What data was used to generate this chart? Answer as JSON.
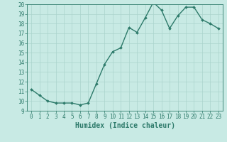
{
  "x": [
    0,
    1,
    2,
    3,
    4,
    5,
    6,
    7,
    8,
    9,
    10,
    11,
    12,
    13,
    14,
    15,
    16,
    17,
    18,
    19,
    20,
    21,
    22,
    23
  ],
  "y": [
    11.2,
    10.6,
    10.0,
    9.8,
    9.8,
    9.8,
    9.6,
    9.8,
    11.8,
    13.8,
    15.1,
    15.5,
    17.6,
    17.1,
    18.6,
    20.2,
    19.4,
    17.5,
    18.8,
    19.7,
    19.7,
    18.4,
    18.0,
    17.5
  ],
  "line_color": "#2d7a6a",
  "marker": "D",
  "marker_size": 2.0,
  "linewidth": 1.0,
  "xlabel": "Humidex (Indice chaleur)",
  "ylim": [
    9,
    20
  ],
  "xlim": [
    -0.5,
    23.5
  ],
  "yticks": [
    9,
    10,
    11,
    12,
    13,
    14,
    15,
    16,
    17,
    18,
    19,
    20
  ],
  "xticks": [
    0,
    1,
    2,
    3,
    4,
    5,
    6,
    7,
    8,
    9,
    10,
    11,
    12,
    13,
    14,
    15,
    16,
    17,
    18,
    19,
    20,
    21,
    22,
    23
  ],
  "background_color": "#c8eae4",
  "grid_color": "#aad4cc",
  "xlabel_fontsize": 7,
  "tick_fontsize": 5.5,
  "fig_width": 3.2,
  "fig_height": 2.0,
  "dpi": 100
}
